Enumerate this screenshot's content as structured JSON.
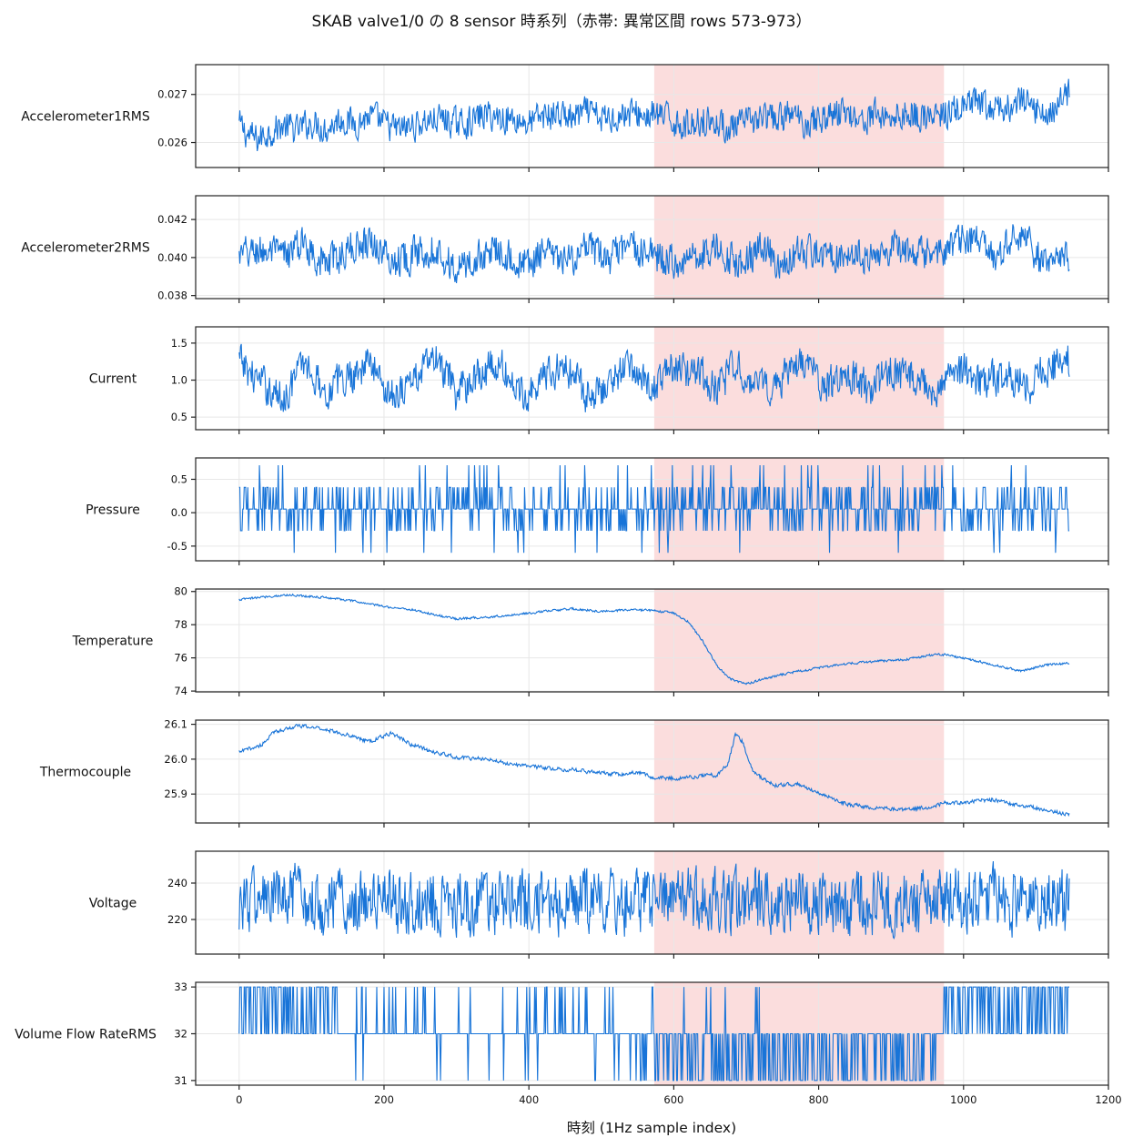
{
  "figure": {
    "title": "SKAB valve1/0 の 8 sensor 時系列（赤帯: 異常区間 rows 573-973）",
    "xlabel": "時刻 (1Hz sample index)"
  },
  "colors": {
    "series": "#1874d8",
    "anomaly_band": "#f6b8b8",
    "grid": "#e7e7e7",
    "axes": "#222222"
  },
  "chart_data": {
    "type": "line",
    "layout": "8 vertically stacked line panels sharing the x axis",
    "x_axis": {
      "label": "時刻 (1Hz sample index)",
      "range": [
        -60,
        1200
      ],
      "ticks": [
        0,
        200,
        400,
        600,
        800,
        1000,
        1200
      ],
      "sample_count": 1147
    },
    "anomaly_region": {
      "start": 573,
      "end": 973
    },
    "grid": true,
    "panels": [
      {
        "name": "Accelerometer1RMS",
        "ylim": [
          0.02548,
          0.02762
        ],
        "yticks": [
          0.026,
          0.027
        ],
        "ytick_labels": [
          "0.026",
          "0.027"
        ],
        "points": [
          [
            0,
            0.02638
          ],
          [
            10,
            0.02618
          ],
          [
            25,
            0.02605
          ],
          [
            40,
            0.02622
          ],
          [
            60,
            0.02635
          ],
          [
            80,
            0.02625
          ],
          [
            100,
            0.02642
          ],
          [
            120,
            0.0263
          ],
          [
            140,
            0.0265
          ],
          [
            160,
            0.0264
          ],
          [
            180,
            0.02655
          ],
          [
            200,
            0.02638
          ],
          [
            220,
            0.02625
          ],
          [
            240,
            0.02635
          ],
          [
            260,
            0.02645
          ],
          [
            280,
            0.0265
          ],
          [
            300,
            0.02638
          ],
          [
            320,
            0.02645
          ],
          [
            340,
            0.02658
          ],
          [
            360,
            0.02652
          ],
          [
            380,
            0.0265
          ],
          [
            400,
            0.0264
          ],
          [
            420,
            0.02655
          ],
          [
            440,
            0.0266
          ],
          [
            460,
            0.0265
          ],
          [
            480,
            0.02662
          ],
          [
            500,
            0.02648
          ],
          [
            520,
            0.02655
          ],
          [
            540,
            0.02662
          ],
          [
            560,
            0.02655
          ],
          [
            573,
            0.02658
          ],
          [
            600,
            0.02645
          ],
          [
            620,
            0.02635
          ],
          [
            640,
            0.0265
          ],
          [
            660,
            0.0264
          ],
          [
            680,
            0.02628
          ],
          [
            700,
            0.0264
          ],
          [
            720,
            0.02652
          ],
          [
            740,
            0.02645
          ],
          [
            760,
            0.0266
          ],
          [
            780,
            0.02642
          ],
          [
            800,
            0.0265
          ],
          [
            820,
            0.0266
          ],
          [
            840,
            0.02665
          ],
          [
            860,
            0.02645
          ],
          [
            880,
            0.0266
          ],
          [
            900,
            0.02652
          ],
          [
            920,
            0.02662
          ],
          [
            940,
            0.02655
          ],
          [
            960,
            0.0265
          ],
          [
            973,
            0.02658
          ],
          [
            1000,
            0.02672
          ],
          [
            1020,
            0.0268
          ],
          [
            1040,
            0.02665
          ],
          [
            1060,
            0.02672
          ],
          [
            1080,
            0.02685
          ],
          [
            1100,
            0.02668
          ],
          [
            1120,
            0.02662
          ],
          [
            1146,
            0.02705
          ]
        ],
        "noise_amplitude": 0.00045
      },
      {
        "name": "Accelerometer2RMS",
        "ylim": [
          0.03784,
          0.04325
        ],
        "yticks": [
          0.038,
          0.04,
          0.042
        ],
        "ytick_labels": [
          "0.038",
          "0.040",
          "0.042"
        ],
        "points": [
          [
            0,
            0.04
          ],
          [
            30,
            0.0404
          ],
          [
            60,
            0.04
          ],
          [
            90,
            0.0408
          ],
          [
            120,
            0.0396
          ],
          [
            150,
            0.0404
          ],
          [
            180,
            0.041
          ],
          [
            210,
            0.0398
          ],
          [
            240,
            0.0402
          ],
          [
            270,
            0.0406
          ],
          [
            300,
            0.0393
          ],
          [
            330,
            0.04
          ],
          [
            360,
            0.0406
          ],
          [
            390,
            0.0395
          ],
          [
            420,
            0.0402
          ],
          [
            450,
            0.0397
          ],
          [
            480,
            0.0404
          ],
          [
            510,
            0.0399
          ],
          [
            540,
            0.0405
          ],
          [
            573,
            0.0401
          ],
          [
            600,
            0.0397
          ],
          [
            630,
            0.0402
          ],
          [
            660,
            0.0405
          ],
          [
            690,
            0.0397
          ],
          [
            720,
            0.0405
          ],
          [
            750,
            0.0396
          ],
          [
            780,
            0.0403
          ],
          [
            810,
            0.0401
          ],
          [
            840,
            0.0404
          ],
          [
            870,
            0.0398
          ],
          [
            900,
            0.0406
          ],
          [
            930,
            0.04
          ],
          [
            960,
            0.0404
          ],
          [
            973,
            0.0401
          ],
          [
            1000,
            0.041
          ],
          [
            1020,
            0.0408
          ],
          [
            1040,
            0.0399
          ],
          [
            1060,
            0.0405
          ],
          [
            1080,
            0.0415
          ],
          [
            1100,
            0.04
          ],
          [
            1120,
            0.0396
          ],
          [
            1146,
            0.0402
          ]
        ],
        "noise_amplitude": 0.0013
      },
      {
        "name": "Current",
        "ylim": [
          0.33,
          1.72
        ],
        "yticks": [
          0.5,
          1.0,
          1.5
        ],
        "ytick_labels": [
          "0.5",
          "1.0",
          "1.5"
        ],
        "points": [
          [
            0,
            1.25
          ],
          [
            30,
            0.95
          ],
          [
            60,
            0.75
          ],
          [
            90,
            1.25
          ],
          [
            120,
            0.85
          ],
          [
            150,
            1.05
          ],
          [
            180,
            1.25
          ],
          [
            210,
            0.8
          ],
          [
            240,
            1.0
          ],
          [
            270,
            1.3
          ],
          [
            300,
            0.8
          ],
          [
            330,
            1.1
          ],
          [
            360,
            1.2
          ],
          [
            390,
            0.8
          ],
          [
            420,
            1.05
          ],
          [
            450,
            1.2
          ],
          [
            480,
            0.8
          ],
          [
            510,
            0.95
          ],
          [
            540,
            1.2
          ],
          [
            573,
            0.9
          ],
          [
            600,
            1.15
          ],
          [
            630,
            1.1
          ],
          [
            660,
            0.9
          ],
          [
            690,
            1.2
          ],
          [
            720,
            0.85
          ],
          [
            750,
            1.05
          ],
          [
            780,
            1.2
          ],
          [
            810,
            0.9
          ],
          [
            840,
            1.1
          ],
          [
            870,
            0.85
          ],
          [
            900,
            1.15
          ],
          [
            930,
            1.0
          ],
          [
            960,
            0.85
          ],
          [
            973,
            1.05
          ],
          [
            1000,
            1.15
          ],
          [
            1030,
            0.95
          ],
          [
            1060,
            1.1
          ],
          [
            1090,
            0.9
          ],
          [
            1120,
            1.2
          ],
          [
            1146,
            1.25
          ]
        ],
        "noise_amplitude": 0.35
      },
      {
        "name": "Pressure",
        "ylim": [
          -0.72,
          0.82
        ],
        "yticks": [
          -0.5,
          0.0,
          0.5
        ],
        "ytick_labels": [
          "-0.5",
          "0.0",
          "0.5"
        ],
        "levels": [
          -0.6,
          -0.27,
          0.054,
          0.38,
          0.71
        ],
        "level_probabilities": [
          0.02,
          0.17,
          0.55,
          0.22,
          0.04
        ]
      },
      {
        "name": "Temperature",
        "ylim": [
          73.95,
          80.15
        ],
        "yticks": [
          74,
          76,
          78,
          80
        ],
        "ytick_labels": [
          "74",
          "76",
          "78",
          "80"
        ],
        "points": [
          [
            0,
            79.5
          ],
          [
            40,
            79.7
          ],
          [
            70,
            79.8
          ],
          [
            100,
            79.7
          ],
          [
            130,
            79.6
          ],
          [
            160,
            79.4
          ],
          [
            200,
            79.1
          ],
          [
            240,
            78.9
          ],
          [
            270,
            78.6
          ],
          [
            300,
            78.35
          ],
          [
            340,
            78.45
          ],
          [
            380,
            78.6
          ],
          [
            420,
            78.8
          ],
          [
            460,
            78.95
          ],
          [
            500,
            78.8
          ],
          [
            540,
            78.9
          ],
          [
            573,
            78.85
          ],
          [
            600,
            78.7
          ],
          [
            620,
            78.2
          ],
          [
            640,
            77.0
          ],
          [
            660,
            75.5
          ],
          [
            680,
            74.7
          ],
          [
            700,
            74.4
          ],
          [
            720,
            74.7
          ],
          [
            760,
            75.1
          ],
          [
            800,
            75.4
          ],
          [
            840,
            75.65
          ],
          [
            880,
            75.8
          ],
          [
            920,
            75.9
          ],
          [
            960,
            76.2
          ],
          [
            973,
            76.2
          ],
          [
            1000,
            76.0
          ],
          [
            1040,
            75.6
          ],
          [
            1080,
            75.2
          ],
          [
            1110,
            75.55
          ],
          [
            1146,
            75.7
          ]
        ],
        "noise_amplitude": 0.1
      },
      {
        "name": "Thermocouple",
        "ylim": [
          25.817,
          26.112
        ],
        "yticks": [
          25.9,
          26.0,
          26.1
        ],
        "ytick_labels": [
          "25.9",
          "26.0",
          "26.1"
        ],
        "points": [
          [
            0,
            26.02
          ],
          [
            30,
            26.04
          ],
          [
            50,
            26.08
          ],
          [
            80,
            26.095
          ],
          [
            110,
            26.09
          ],
          [
            150,
            26.07
          ],
          [
            180,
            26.05
          ],
          [
            210,
            26.075
          ],
          [
            240,
            26.04
          ],
          [
            270,
            26.02
          ],
          [
            300,
            26.005
          ],
          [
            340,
            26.0
          ],
          [
            380,
            25.985
          ],
          [
            420,
            25.975
          ],
          [
            460,
            25.97
          ],
          [
            500,
            25.96
          ],
          [
            530,
            25.955
          ],
          [
            550,
            25.963
          ],
          [
            573,
            25.945
          ],
          [
            600,
            25.945
          ],
          [
            630,
            25.95
          ],
          [
            660,
            25.955
          ],
          [
            675,
            25.99
          ],
          [
            685,
            26.07
          ],
          [
            695,
            26.05
          ],
          [
            710,
            25.96
          ],
          [
            740,
            25.925
          ],
          [
            770,
            25.93
          ],
          [
            800,
            25.905
          ],
          [
            840,
            25.87
          ],
          [
            880,
            25.86
          ],
          [
            920,
            25.855
          ],
          [
            960,
            25.865
          ],
          [
            973,
            25.875
          ],
          [
            1000,
            25.875
          ],
          [
            1040,
            25.885
          ],
          [
            1070,
            25.87
          ],
          [
            1100,
            25.86
          ],
          [
            1146,
            25.84
          ]
        ],
        "noise_amplitude": 0.008
      },
      {
        "name": "Voltage",
        "ylim": [
          201,
          257.5
        ],
        "yticks": [
          220,
          240
        ],
        "ytick_labels": [
          "220",
          "240"
        ],
        "points": [
          [
            0,
            230
          ],
          [
            200,
            231
          ],
          [
            400,
            229
          ],
          [
            600,
            230
          ],
          [
            800,
            229
          ],
          [
            1000,
            231
          ],
          [
            1146,
            230
          ]
        ],
        "noise_amplitude": 25
      },
      {
        "name": "Volume Flow RateRMS",
        "ylim": [
          30.9,
          33.1
        ],
        "yticks": [
          31,
          32,
          33
        ],
        "ytick_labels": [
          "31",
          "32",
          "33"
        ],
        "levels": [
          31,
          32,
          33
        ],
        "segments": [
          {
            "from": 0,
            "to": 140,
            "probabilities": [
              0.005,
              0.6,
              0.395
            ]
          },
          {
            "from": 140,
            "to": 400,
            "probabilities": [
              0.02,
              0.88,
              0.1
            ]
          },
          {
            "from": 400,
            "to": 490,
            "probabilities": [
              0.01,
              0.85,
              0.14
            ]
          },
          {
            "from": 490,
            "to": 573,
            "probabilities": [
              0.15,
              0.8,
              0.05
            ]
          },
          {
            "from": 573,
            "to": 720,
            "probabilities": [
              0.38,
              0.6,
              0.02
            ]
          },
          {
            "from": 720,
            "to": 973,
            "probabilities": [
              0.38,
              0.62,
              0.0
            ]
          },
          {
            "from": 973,
            "to": 1147,
            "probabilities": [
              0.0,
              0.4,
              0.6
            ]
          }
        ]
      }
    ]
  }
}
